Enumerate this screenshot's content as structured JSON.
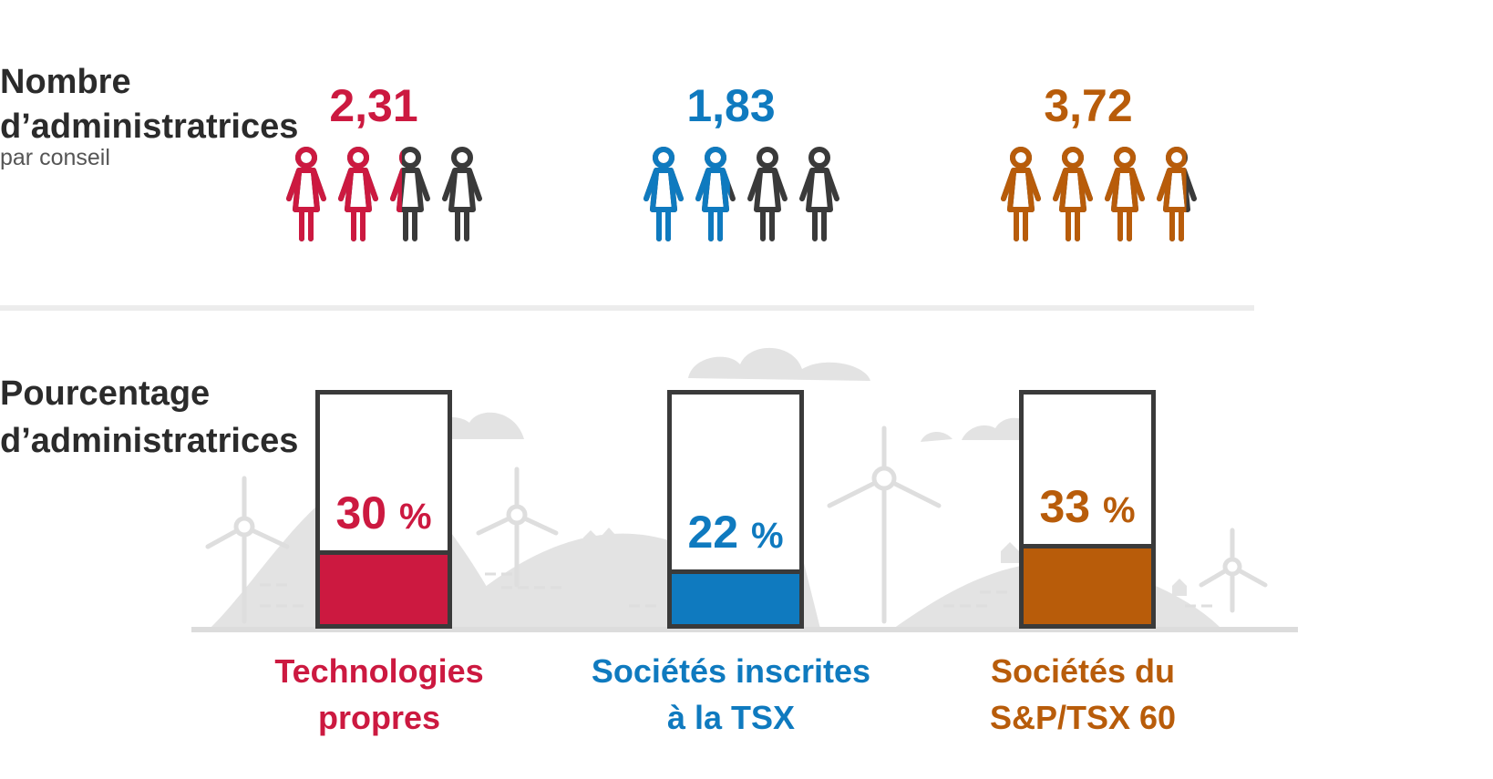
{
  "labels": {
    "count_title": "Nombre d’administratrices",
    "count_subtitle": "par conseil",
    "pct_title": "Pourcentage d’administratrices",
    "percent_sign": "%"
  },
  "icons": {
    "figure": "person-woman-icon",
    "per_group": 4
  },
  "colors": {
    "clean_tech": "#cc1940",
    "tsx": "#0f7abf",
    "sp_tsx60": "#b85c0a",
    "neutral": "#3a3a3a",
    "scenery": "#e0e0e0"
  },
  "chart_data": [
    {
      "type": "pictogram",
      "title": "Nombre d’administratrices",
      "subtitle": "par conseil",
      "max_icons": 4,
      "categories": [
        "Technologies propres",
        "Sociétés inscrites à la TSX",
        "Sociétés du S&P/TSX 60"
      ],
      "values": [
        2.31,
        1.83,
        3.72
      ],
      "value_labels": [
        "2,31",
        "1,83",
        "3,72"
      ]
    },
    {
      "type": "bar",
      "title": "Pourcentage d’administratrices",
      "categories": [
        "Technologies propres",
        "Sociétés inscrites à la TSX",
        "Sociétés du S&P/TSX 60"
      ],
      "values": [
        30,
        22,
        33
      ],
      "value_labels": [
        "30",
        "22",
        "33"
      ],
      "ylim": [
        0,
        100
      ],
      "unit": "%"
    }
  ],
  "categories": [
    {
      "line1": "Technologies",
      "line2": "propres"
    },
    {
      "line1": "Sociétés inscrites",
      "line2": "à la TSX"
    },
    {
      "line1": "Sociétés du",
      "line2": "S&P/TSX 60"
    }
  ]
}
